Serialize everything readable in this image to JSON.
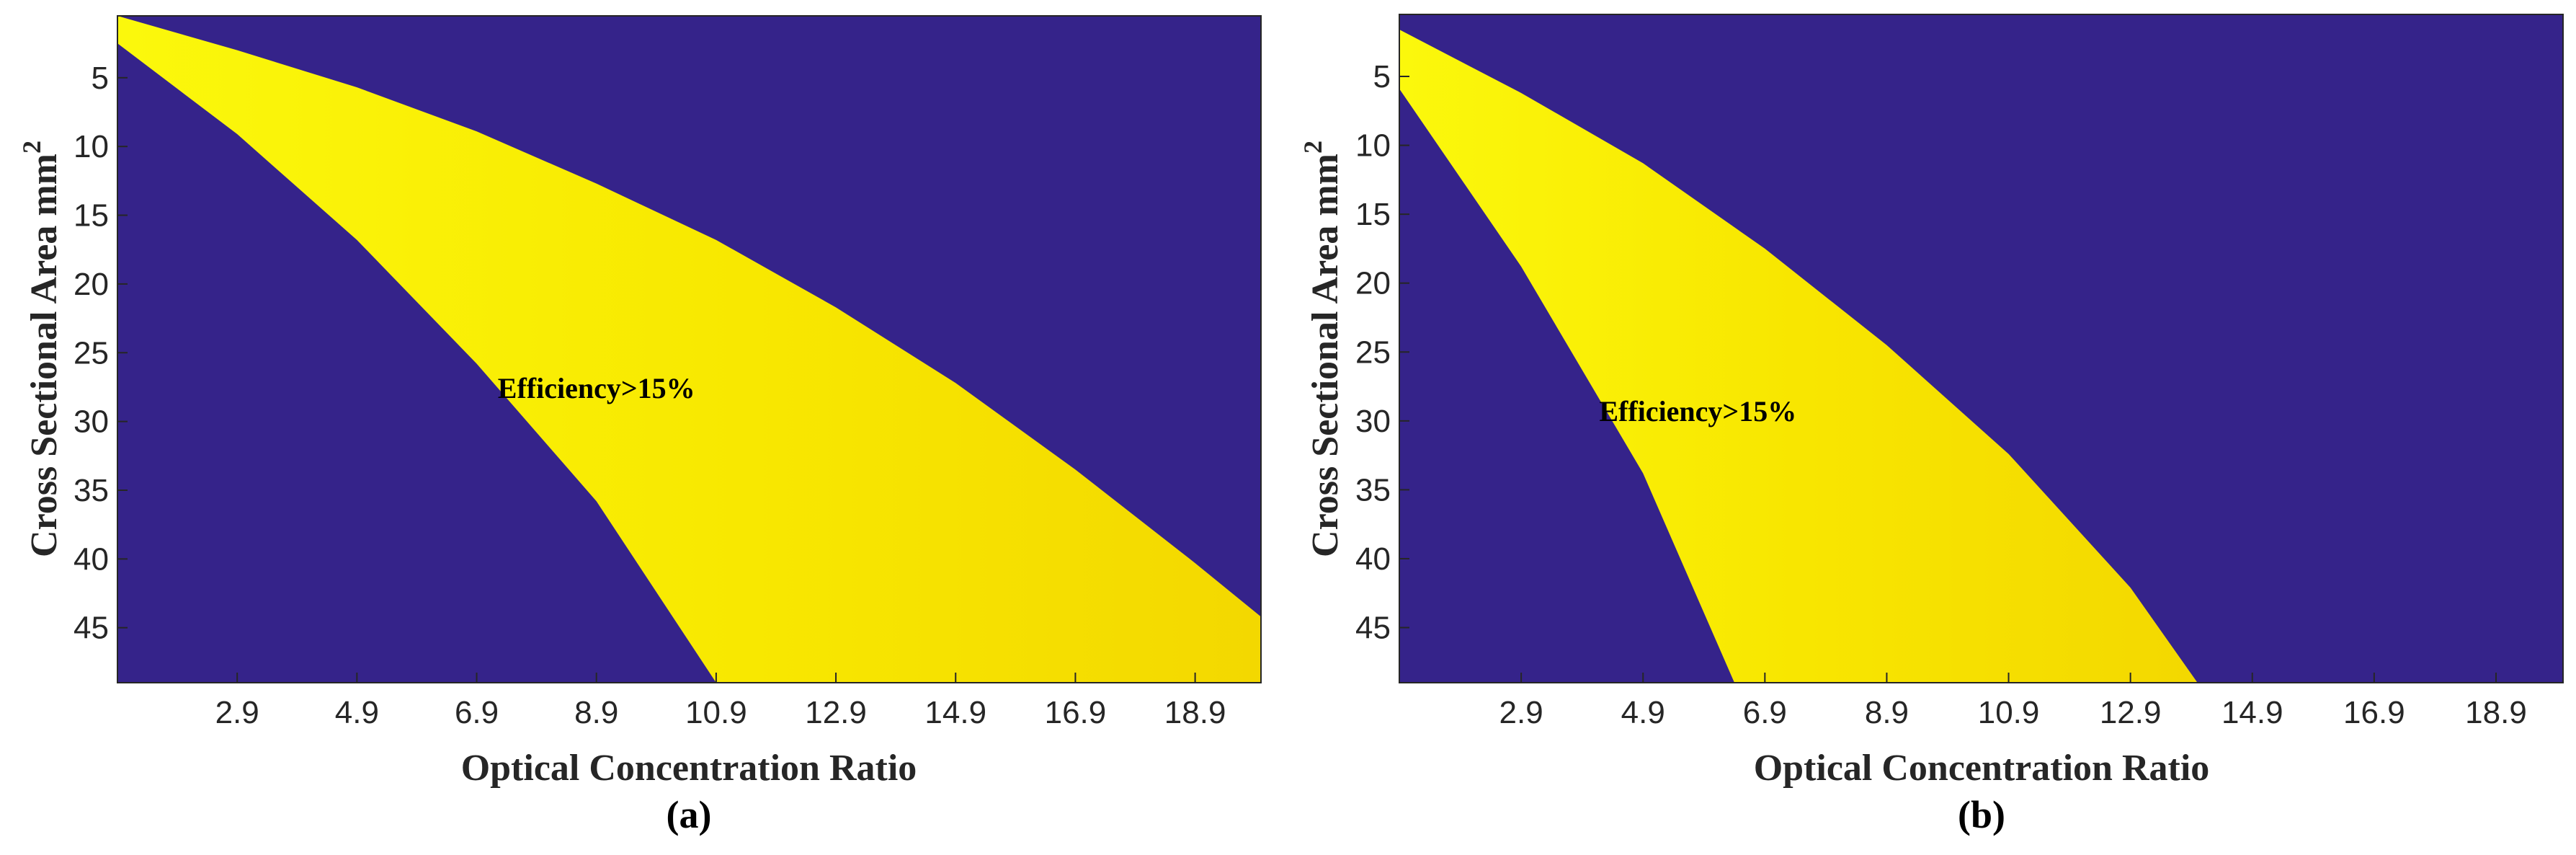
{
  "colors": {
    "background_region": "#35238a",
    "band_light": "#fbf80c",
    "band_dark": "#f4dc00",
    "axis": "#262626"
  },
  "chart_data": [
    {
      "type": "heatmap",
      "panel_label": "(a)",
      "xlabel": "Optical Concentration Ratio",
      "ylabel": "Cross Sectional Area mm",
      "ylabel_superscript": "2",
      "x_ticks": [
        "2.9",
        "4.9",
        "6.9",
        "8.9",
        "10.9",
        "12.9",
        "14.9",
        "16.9",
        "18.9"
      ],
      "x_tick_values": [
        2.9,
        4.9,
        6.9,
        8.9,
        10.9,
        12.9,
        14.9,
        16.9,
        18.9
      ],
      "y_ticks": [
        "5",
        "10",
        "15",
        "20",
        "25",
        "30",
        "35",
        "40",
        "45"
      ],
      "y_tick_values": [
        5,
        10,
        15,
        20,
        25,
        30,
        35,
        40,
        45
      ],
      "xlim": [
        0.9,
        20.0
      ],
      "ylim": [
        0.5,
        49.0
      ],
      "y_reversed": true,
      "annotation": "Efficiency>15%",
      "annotation_pos": [
        8.9,
        28.3
      ],
      "region_label": "Efficiency>15%",
      "upper_boundary": [
        [
          0.9,
          0.5
        ],
        [
          2.9,
          3.0
        ],
        [
          4.9,
          5.7
        ],
        [
          6.9,
          8.9
        ],
        [
          8.9,
          12.7
        ],
        [
          10.9,
          16.8
        ],
        [
          12.9,
          21.7
        ],
        [
          14.9,
          27.2
        ],
        [
          16.9,
          33.5
        ],
        [
          18.9,
          40.3
        ],
        [
          20.0,
          44.2
        ]
      ],
      "lower_boundary": [
        [
          0.9,
          2.5
        ],
        [
          2.9,
          9.1
        ],
        [
          4.9,
          16.8
        ],
        [
          6.9,
          25.8
        ],
        [
          8.9,
          35.8
        ],
        [
          10.9,
          49.0
        ]
      ]
    },
    {
      "type": "heatmap",
      "panel_label": "(b)",
      "xlabel": "Optical Concentration Ratio",
      "ylabel": "Cross Sectional Area mm",
      "ylabel_superscript": "2",
      "x_ticks": [
        "2.9",
        "4.9",
        "6.9",
        "8.9",
        "10.9",
        "12.9",
        "14.9",
        "16.9",
        "18.9"
      ],
      "x_tick_values": [
        2.9,
        4.9,
        6.9,
        8.9,
        10.9,
        12.9,
        14.9,
        16.9,
        18.9
      ],
      "y_ticks": [
        "5",
        "10",
        "15",
        "20",
        "25",
        "30",
        "35",
        "40",
        "45"
      ],
      "y_tick_values": [
        5,
        10,
        15,
        20,
        25,
        30,
        35,
        40,
        45
      ],
      "xlim": [
        0.9,
        20.0
      ],
      "ylim": [
        0.5,
        49.0
      ],
      "y_reversed": true,
      "annotation": "Efficiency>15%",
      "annotation_pos": [
        5.8,
        30.0
      ],
      "region_label": "Efficiency>15%",
      "upper_boundary": [
        [
          0.9,
          1.6
        ],
        [
          2.9,
          6.2
        ],
        [
          4.9,
          11.3
        ],
        [
          6.9,
          17.5
        ],
        [
          8.9,
          24.5
        ],
        [
          10.9,
          32.4
        ],
        [
          12.9,
          42.1
        ],
        [
          14.0,
          49.0
        ]
      ],
      "lower_boundary": [
        [
          0.9,
          5.9
        ],
        [
          2.9,
          18.8
        ],
        [
          4.9,
          33.8
        ],
        [
          6.4,
          49.0
        ]
      ]
    }
  ]
}
